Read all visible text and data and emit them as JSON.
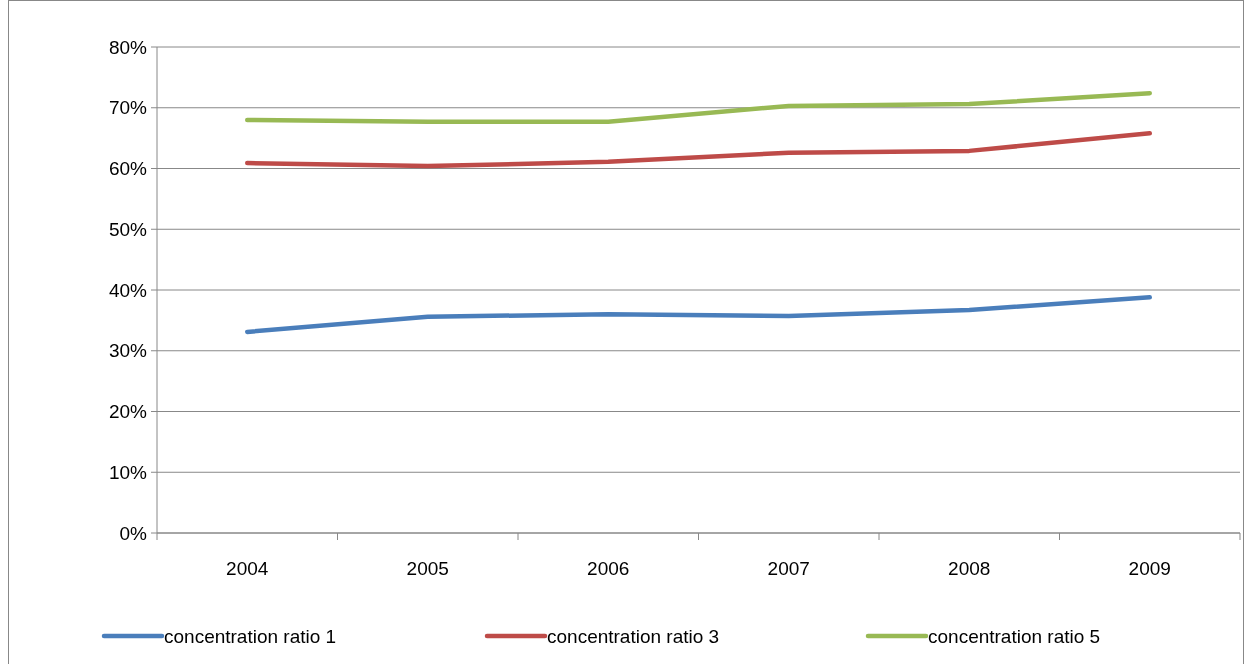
{
  "chart_data": {
    "type": "line",
    "categories": [
      "2004",
      "2005",
      "2006",
      "2007",
      "2008",
      "2009"
    ],
    "series": [
      {
        "name": "concentration ratio 1",
        "color": "#4a7ebb",
        "values": [
          33.1,
          35.6,
          36.0,
          35.7,
          36.7,
          38.8
        ]
      },
      {
        "name": "concentration ratio 3",
        "color": "#be4b48",
        "values": [
          60.9,
          60.4,
          61.1,
          62.6,
          62.9,
          65.8
        ]
      },
      {
        "name": "concentration ratio 5",
        "color": "#98b954",
        "values": [
          68.0,
          67.7,
          67.7,
          70.3,
          70.6,
          72.4
        ]
      }
    ],
    "ylim": [
      0,
      80
    ],
    "yticks": [
      {
        "value": 0,
        "label": "0%"
      },
      {
        "value": 10,
        "label": "10%"
      },
      {
        "value": 20,
        "label": "20%"
      },
      {
        "value": 30,
        "label": "30%"
      },
      {
        "value": 40,
        "label": "40%"
      },
      {
        "value": 50,
        "label": "50%"
      },
      {
        "value": 60,
        "label": "60%"
      },
      {
        "value": 70,
        "label": "70%"
      },
      {
        "value": 80,
        "label": "80%"
      }
    ],
    "grid": "y",
    "legend": "bottom",
    "marker": "none",
    "line_style": "solid"
  }
}
